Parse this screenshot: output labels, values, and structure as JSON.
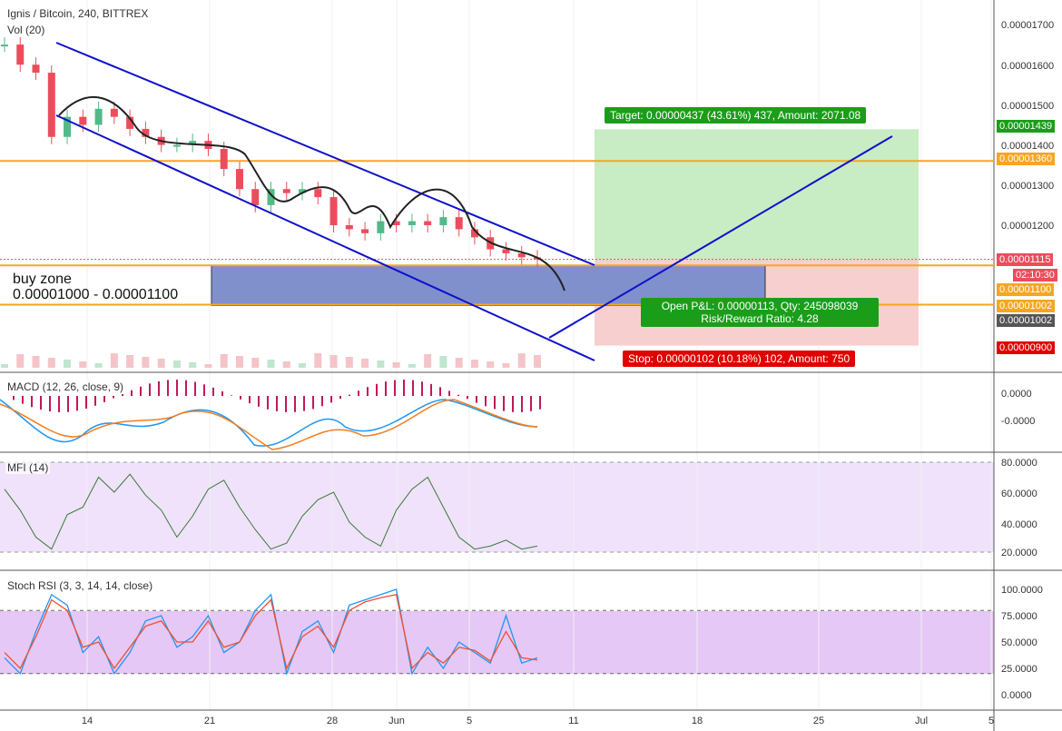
{
  "header": {
    "symbol": "Ignis / Bitcoin, 240, BITTREX",
    "volume": "Vol (20)"
  },
  "indicators": {
    "macd": "MACD (12, 26, close, 9)",
    "mfi": "MFI (14)",
    "stoch": "Stoch RSI (3, 3, 14, 14, close)"
  },
  "colors": {
    "up": "#53b987",
    "down": "#eb4d5c",
    "channel": "#1010cc",
    "level": "#f5a623",
    "target_zone": "#c8ecc4",
    "stop_zone": "#f8cfcf",
    "buy_zone": "#7f90cc",
    "mfi_bg": "#efe2fa",
    "stoch_bg": "#e5c8f5",
    "macd_line": "#2196f3",
    "signal_line": "#f57c1f",
    "hist": "#c2185b"
  },
  "annotations": {
    "buy_zone_title": "buy zone",
    "buy_zone_range": "0.00001000 - 0.00001100",
    "target": "Target: 0.00000437 (43.61%) 437, Amount: 2071.08",
    "open_pl": "Open P&L: 0.00000113, Qty: 245098039",
    "rr": "Risk/Reward Ratio: 4.28",
    "stop": "Stop: 0.00000102 (10.18%) 102, Amount: 750"
  },
  "price_badges": {
    "target": "0.00001439",
    "level_1360": "0.00001360",
    "current": "0.00001115",
    "timer": "02:10:30",
    "level_1100": "0.00001100",
    "level_1002": "0.00001002",
    "level_1002b": "0.00001002",
    "stop": "0.00000900"
  },
  "chart_data": {
    "type": "line",
    "title": "Ignis / Bitcoin, 240, BITTREX",
    "price_axis_ticks": [
      "0.00001700",
      "0.00001600",
      "0.00001500",
      "0.00001400",
      "0.00001300",
      "0.00001200"
    ],
    "macd_axis_ticks": [
      "0.0000",
      "-0.0000"
    ],
    "mfi_axis_ticks": [
      "80.0000",
      "60.0000",
      "40.0000",
      "20.0000"
    ],
    "stoch_axis_ticks": [
      "100.0000",
      "75.0000",
      "50.0000",
      "25.0000",
      "0.0000"
    ],
    "x_ticks": [
      "14",
      "21",
      "28",
      "Jun",
      "5",
      "11",
      "18",
      "25",
      "Jul",
      "5"
    ],
    "close_series": [
      1.65e-05,
      1.6e-05,
      1.58e-05,
      1.42e-05,
      1.47e-05,
      1.45e-05,
      1.49e-05,
      1.47e-05,
      1.44e-05,
      1.42e-05,
      1.4e-05,
      1.4e-05,
      1.41e-05,
      1.39e-05,
      1.34e-05,
      1.29e-05,
      1.25e-05,
      1.29e-05,
      1.28e-05,
      1.29e-05,
      1.27e-05,
      1.2e-05,
      1.19e-05,
      1.18e-05,
      1.21e-05,
      1.2e-05,
      1.21e-05,
      1.2e-05,
      1.22e-05,
      1.19e-05,
      1.17e-05,
      1.14e-05,
      1.13e-05,
      1.12e-05,
      1.115e-05
    ],
    "levels": [
      1.36e-05,
      1.1e-05,
      1.002e-05
    ],
    "buy_zone": [
      1e-05,
      1.1e-05
    ],
    "target_price": 1.439e-05,
    "stop_price": 9e-06,
    "mfi_series": [
      62,
      48,
      30,
      22,
      45,
      50,
      70,
      60,
      72,
      58,
      48,
      30,
      44,
      62,
      68,
      50,
      35,
      22,
      26,
      44,
      55,
      60,
      40,
      30,
      24,
      48,
      62,
      70,
      50,
      30,
      22,
      24,
      28,
      22,
      24
    ],
    "stoch_k": [
      35,
      20,
      60,
      95,
      85,
      40,
      55,
      20,
      40,
      70,
      75,
      45,
      55,
      75,
      40,
      50,
      80,
      95,
      20,
      60,
      70,
      40,
      85,
      90,
      95,
      100,
      20,
      45,
      25,
      50,
      40,
      30,
      75,
      30,
      35
    ],
    "stoch_d": [
      40,
      25,
      55,
      90,
      80,
      45,
      50,
      25,
      45,
      65,
      70,
      50,
      50,
      70,
      45,
      50,
      75,
      90,
      25,
      55,
      65,
      45,
      80,
      88,
      92,
      95,
      25,
      40,
      30,
      45,
      42,
      32,
      60,
      35,
      33
    ]
  }
}
